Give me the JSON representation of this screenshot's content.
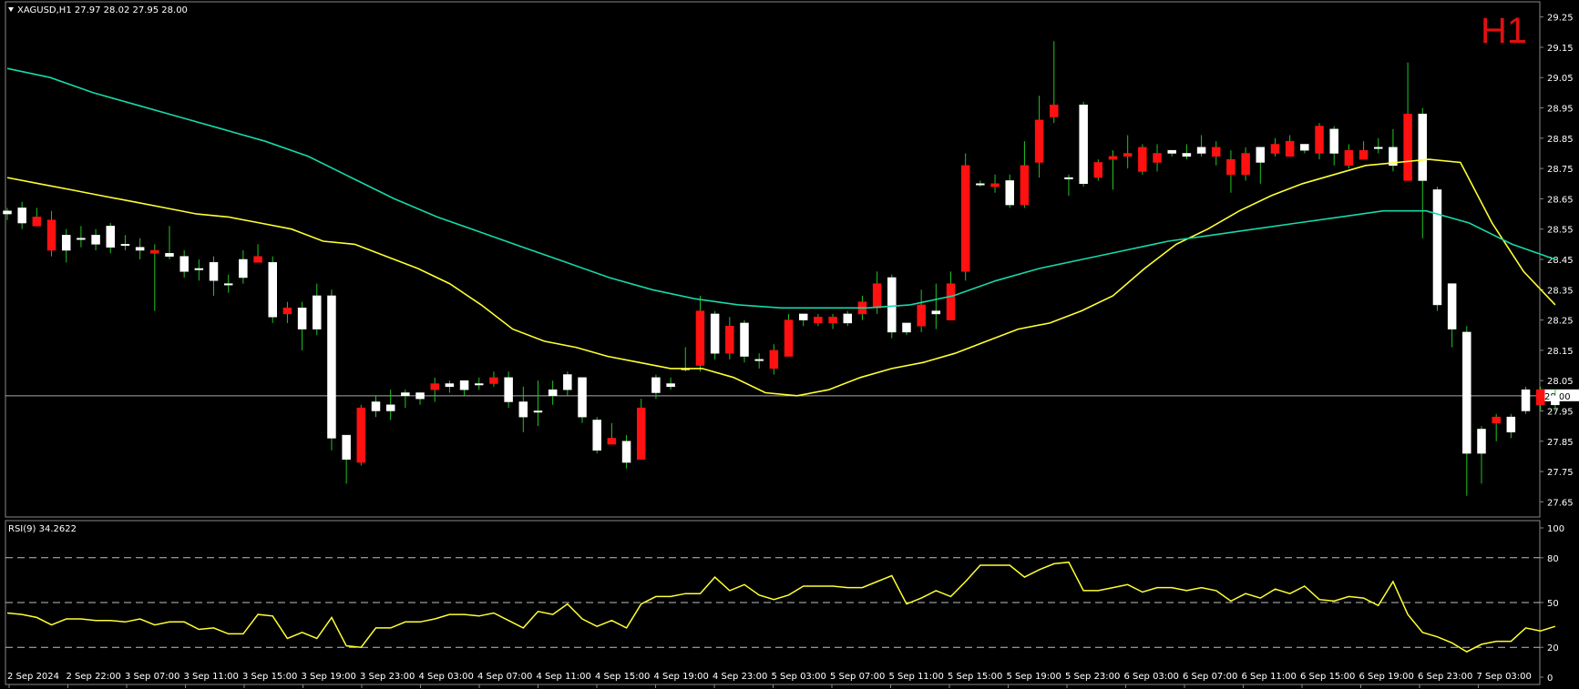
{
  "header": {
    "title": "XAGUSD,H1  27.97 28.02 27.95 28.00",
    "timeframe": "H1"
  },
  "rsi_header": "RSI(9) 34.2622",
  "current_price_label": "28.00",
  "colors": {
    "background": "#000000",
    "bull_body": "#ffffff",
    "bear_body": "#ff1111",
    "wick": "#22c422",
    "ma_fast": "#ffff33",
    "ma_slow": "#18d9a9",
    "rsi": "#ffff33",
    "price_line": "#a8a8a8",
    "grid_dash": "#bfbfbf",
    "frame": "#888888"
  },
  "chart_data": [
    {
      "type": "candlestick",
      "symbol": "XAGUSD",
      "timeframe": "H1",
      "ylim": [
        27.6,
        29.3
      ],
      "y_ticks": [
        "29.25",
        "29.15",
        "29.05",
        "28.95",
        "28.85",
        "28.75",
        "28.65",
        "28.55",
        "28.45",
        "28.35",
        "28.25",
        "28.15",
        "28.05",
        "27.95",
        "27.85",
        "27.75",
        "27.65"
      ],
      "x_tick_labels": [
        "2 Sep 2024",
        "2 Sep 22:00",
        "3 Sep 07:00",
        "3 Sep 11:00",
        "3 Sep 15:00",
        "3 Sep 19:00",
        "3 Sep 23:00",
        "4 Sep 03:00",
        "4 Sep 07:00",
        "4 Sep 11:00",
        "4 Sep 15:00",
        "4 Sep 19:00",
        "4 Sep 23:00",
        "5 Sep 03:00",
        "5 Sep 07:00",
        "5 Sep 11:00",
        "5 Sep 15:00",
        "5 Sep 19:00",
        "5 Sep 23:00",
        "6 Sep 03:00",
        "6 Sep 07:00",
        "6 Sep 11:00",
        "6 Sep 15:00",
        "6 Sep 19:00",
        "6 Sep 23:00",
        "7 Sep 03:00"
      ],
      "current_price": 28.0,
      "ohlc": [
        [
          28.6,
          28.62,
          28.58,
          28.61
        ],
        [
          28.57,
          28.64,
          28.55,
          28.62
        ],
        [
          28.59,
          28.62,
          28.56,
          28.56
        ],
        [
          28.58,
          28.61,
          28.46,
          28.48
        ],
        [
          28.48,
          28.55,
          28.44,
          28.53
        ],
        [
          28.52,
          28.56,
          28.49,
          28.52
        ],
        [
          28.5,
          28.55,
          28.48,
          28.53
        ],
        [
          28.49,
          28.57,
          28.47,
          28.56
        ],
        [
          28.5,
          28.53,
          28.48,
          28.5
        ],
        [
          28.48,
          28.52,
          28.45,
          28.49
        ],
        [
          28.48,
          28.5,
          28.28,
          28.47
        ],
        [
          28.46,
          28.56,
          28.45,
          28.47
        ],
        [
          28.41,
          28.48,
          28.39,
          28.46
        ],
        [
          28.42,
          28.45,
          28.38,
          28.42
        ],
        [
          28.38,
          28.46,
          28.33,
          28.44
        ],
        [
          28.37,
          28.4,
          28.34,
          28.37
        ],
        [
          28.39,
          28.48,
          28.37,
          28.45
        ],
        [
          28.46,
          28.5,
          28.44,
          28.44
        ],
        [
          28.26,
          28.46,
          28.24,
          28.44
        ],
        [
          28.29,
          28.31,
          28.24,
          28.27
        ],
        [
          28.22,
          28.31,
          28.15,
          28.29
        ],
        [
          28.22,
          28.37,
          28.2,
          28.33
        ],
        [
          27.86,
          28.35,
          27.82,
          28.33
        ],
        [
          27.79,
          27.87,
          27.71,
          27.87
        ],
        [
          27.96,
          27.97,
          27.77,
          27.78
        ],
        [
          27.95,
          28.0,
          27.93,
          27.98
        ],
        [
          27.95,
          28.02,
          27.92,
          27.97
        ],
        [
          28.0,
          28.02,
          27.96,
          28.01
        ],
        [
          27.99,
          28.01,
          27.97,
          28.01
        ],
        [
          28.04,
          28.06,
          27.98,
          28.02
        ],
        [
          28.03,
          28.05,
          28.01,
          28.04
        ],
        [
          28.02,
          28.04,
          28.0,
          28.05
        ],
        [
          28.04,
          28.06,
          28.02,
          28.04
        ],
        [
          28.06,
          28.08,
          28.03,
          28.04
        ],
        [
          27.98,
          28.08,
          27.96,
          28.06
        ],
        [
          27.93,
          28.03,
          27.88,
          27.98
        ],
        [
          27.95,
          28.05,
          27.9,
          27.95
        ],
        [
          28.0,
          28.05,
          27.97,
          28.02
        ],
        [
          28.02,
          28.08,
          28.0,
          28.07
        ],
        [
          27.93,
          28.06,
          27.91,
          28.06
        ],
        [
          27.82,
          27.93,
          27.81,
          27.92
        ],
        [
          27.86,
          27.91,
          27.84,
          27.84
        ],
        [
          27.78,
          27.87,
          27.76,
          27.85
        ],
        [
          27.96,
          27.99,
          27.79,
          27.79
        ],
        [
          28.01,
          28.07,
          27.99,
          28.06
        ],
        [
          28.03,
          28.06,
          28.02,
          28.04
        ],
        [
          28.09,
          28.16,
          28.08,
          28.09
        ],
        [
          28.28,
          28.33,
          28.08,
          28.1
        ],
        [
          28.14,
          28.28,
          28.12,
          28.27
        ],
        [
          28.23,
          28.26,
          28.12,
          28.14
        ],
        [
          28.13,
          28.25,
          28.11,
          28.24
        ],
        [
          28.12,
          28.14,
          28.09,
          28.12
        ],
        [
          28.15,
          28.17,
          28.07,
          28.09
        ],
        [
          28.25,
          28.27,
          28.13,
          28.13
        ],
        [
          28.25,
          28.27,
          28.23,
          28.27
        ],
        [
          28.26,
          28.27,
          28.23,
          28.24
        ],
        [
          28.26,
          28.27,
          28.22,
          28.24
        ],
        [
          28.24,
          28.28,
          28.23,
          28.27
        ],
        [
          28.31,
          28.33,
          28.25,
          28.27
        ],
        [
          28.37,
          28.41,
          28.27,
          28.29
        ],
        [
          28.21,
          28.4,
          28.19,
          28.39
        ],
        [
          28.21,
          28.24,
          28.2,
          28.24
        ],
        [
          28.3,
          28.35,
          28.21,
          28.23
        ],
        [
          28.27,
          28.37,
          28.22,
          28.28
        ],
        [
          28.37,
          28.41,
          28.25,
          28.25
        ],
        [
          28.76,
          28.8,
          28.38,
          28.41
        ],
        [
          28.7,
          28.71,
          28.69,
          28.7
        ],
        [
          28.7,
          28.73,
          28.67,
          28.69
        ],
        [
          28.63,
          28.73,
          28.62,
          28.71
        ],
        [
          28.76,
          28.84,
          28.62,
          28.63
        ],
        [
          28.91,
          28.99,
          28.72,
          28.77
        ],
        [
          28.96,
          29.17,
          28.9,
          28.92
        ],
        [
          28.72,
          28.73,
          28.66,
          28.72
        ],
        [
          28.7,
          28.97,
          28.69,
          28.96
        ],
        [
          28.77,
          28.78,
          28.71,
          28.72
        ],
        [
          28.79,
          28.81,
          28.68,
          28.78
        ],
        [
          28.8,
          28.86,
          28.75,
          28.79
        ],
        [
          28.82,
          28.83,
          28.73,
          28.74
        ],
        [
          28.8,
          28.83,
          28.74,
          28.77
        ],
        [
          28.8,
          28.81,
          28.79,
          28.81
        ],
        [
          28.79,
          28.83,
          28.78,
          28.8
        ],
        [
          28.8,
          28.86,
          28.79,
          28.82
        ],
        [
          28.82,
          28.84,
          28.76,
          28.79
        ],
        [
          28.78,
          28.81,
          28.67,
          28.73
        ],
        [
          28.8,
          28.82,
          28.71,
          28.73
        ],
        [
          28.77,
          28.82,
          28.7,
          28.82
        ],
        [
          28.83,
          28.85,
          28.79,
          28.8
        ],
        [
          28.84,
          28.86,
          28.8,
          28.79
        ],
        [
          28.81,
          28.83,
          28.8,
          28.83
        ],
        [
          28.89,
          28.9,
          28.78,
          28.8
        ],
        [
          28.8,
          28.89,
          28.76,
          28.88
        ],
        [
          28.81,
          28.83,
          28.75,
          28.76
        ],
        [
          28.81,
          28.84,
          28.78,
          28.78
        ],
        [
          28.82,
          28.85,
          28.8,
          28.82
        ],
        [
          28.76,
          28.88,
          28.74,
          28.82
        ],
        [
          28.93,
          29.1,
          28.72,
          28.71
        ],
        [
          28.71,
          28.95,
          28.52,
          28.93
        ],
        [
          28.3,
          28.69,
          28.28,
          28.68
        ],
        [
          28.22,
          28.37,
          28.16,
          28.37
        ],
        [
          27.81,
          28.23,
          27.67,
          28.21
        ],
        [
          27.81,
          27.9,
          27.71,
          27.89
        ],
        [
          27.93,
          27.94,
          27.85,
          27.91
        ],
        [
          27.88,
          27.94,
          27.86,
          27.93
        ],
        [
          27.95,
          28.03,
          27.94,
          28.02
        ],
        [
          28.02,
          28.03,
          27.95,
          27.97
        ],
        [
          27.97,
          28.02,
          27.95,
          28.0
        ]
      ],
      "moving_averages": [
        {
          "role": "fast",
          "values": [
            28.72,
            28.7,
            28.68,
            28.66,
            28.64,
            28.62,
            28.6,
            28.59,
            28.57,
            28.55,
            28.51,
            28.5,
            28.46,
            28.42,
            28.37,
            28.3,
            28.22,
            28.18,
            28.16,
            28.13,
            28.11,
            28.09,
            28.09,
            28.06,
            28.01,
            28.0,
            28.02,
            28.06,
            28.09,
            28.11,
            28.14,
            28.18,
            28.22,
            28.24,
            28.28,
            28.33,
            28.42,
            28.5,
            28.55,
            28.61,
            28.66,
            28.7,
            28.73,
            28.76,
            28.77,
            28.78,
            28.77,
            28.57,
            28.41,
            28.3
          ]
        },
        {
          "role": "slow",
          "values": [
            29.08,
            29.05,
            29.0,
            28.96,
            28.92,
            28.88,
            28.84,
            28.79,
            28.72,
            28.65,
            28.59,
            28.54,
            28.49,
            28.44,
            28.39,
            28.35,
            28.32,
            28.3,
            28.29,
            28.29,
            28.29,
            28.3,
            28.33,
            28.38,
            28.42,
            28.45,
            28.48,
            28.51,
            28.53,
            28.55,
            28.57,
            28.59,
            28.61,
            28.61,
            28.57,
            28.5,
            28.45
          ]
        }
      ]
    },
    {
      "type": "line",
      "name": "RSI(9)",
      "ylim": [
        0,
        100
      ],
      "y_ticks": [
        "100",
        "80",
        "50",
        "20",
        "0"
      ],
      "levels": [
        80,
        50,
        20
      ],
      "values": [
        43,
        42,
        40,
        35,
        39,
        39,
        38,
        38,
        37,
        39,
        35,
        37,
        37,
        32,
        33,
        29,
        29,
        42,
        41,
        26,
        30,
        26,
        40,
        21,
        20,
        33,
        33,
        37,
        37,
        39,
        42,
        42,
        41,
        43,
        38,
        33,
        44,
        42,
        49,
        39,
        34,
        38,
        33,
        49,
        54,
        54,
        56,
        56,
        67,
        58,
        62,
        55,
        52,
        55,
        61,
        61,
        61,
        60,
        60,
        64,
        68,
        49,
        53,
        58,
        54,
        64,
        75,
        75,
        75,
        67,
        72,
        76,
        77,
        58,
        58,
        60,
        62,
        57,
        60,
        60,
        58,
        60,
        58,
        51,
        56,
        53,
        59,
        56,
        61,
        52,
        51,
        54,
        53,
        48,
        64,
        42,
        30,
        27,
        23,
        17,
        22,
        24,
        24,
        33,
        31,
        34
      ]
    }
  ]
}
